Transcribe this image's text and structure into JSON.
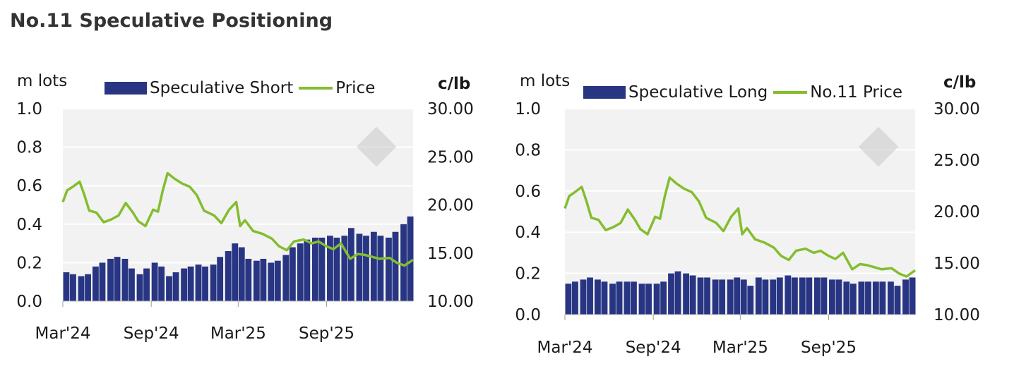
{
  "page": {
    "title": "No.11 Speculative Positioning"
  },
  "colors": {
    "bar": "#283583",
    "line": "#84bd2f",
    "plot_bg": "#f2f2f2",
    "grid": "#ffffff",
    "watermark": "#c8c8c8"
  },
  "chart_data": [
    {
      "type": "bar+line",
      "left_unit": "m lots",
      "right_unit": "c/lb",
      "x_range": [
        "2024-03-01",
        "2026-02-28"
      ],
      "x_ticks": [
        {
          "date": "2024-03-01",
          "label": "Mar'24"
        },
        {
          "date": "2024-09-01",
          "label": "Sep'24"
        },
        {
          "date": "2025-03-01",
          "label": "Mar'25"
        },
        {
          "date": "2025-09-01",
          "label": "Sep'25"
        }
      ],
      "y_left": {
        "min": 0,
        "max": 1.0,
        "ticks": [
          "0.0",
          "0.2",
          "0.4",
          "0.6",
          "0.8",
          "1.0"
        ]
      },
      "y_right": {
        "min": 10,
        "max": 30,
        "ticks": [
          "10.00",
          "15.00",
          "20.00",
          "25.00",
          "30.00"
        ]
      },
      "grid": true,
      "legend_position": "top",
      "series": [
        {
          "name": "Speculative Short",
          "kind": "bar",
          "axis": "left",
          "points": [
            [
              "2024-03-01",
              0.15
            ],
            [
              "2024-03-15",
              0.14
            ],
            [
              "2024-04-01",
              0.13
            ],
            [
              "2024-04-15",
              0.14
            ],
            [
              "2024-05-01",
              0.18
            ],
            [
              "2024-05-15",
              0.2
            ],
            [
              "2024-06-01",
              0.22
            ],
            [
              "2024-06-15",
              0.23
            ],
            [
              "2024-07-01",
              0.22
            ],
            [
              "2024-07-15",
              0.17
            ],
            [
              "2024-08-01",
              0.14
            ],
            [
              "2024-08-15",
              0.17
            ],
            [
              "2024-09-01",
              0.2
            ],
            [
              "2024-09-15",
              0.18
            ],
            [
              "2024-10-01",
              0.13
            ],
            [
              "2024-10-15",
              0.15
            ],
            [
              "2024-11-01",
              0.17
            ],
            [
              "2024-11-15",
              0.18
            ],
            [
              "2024-12-01",
              0.19
            ],
            [
              "2024-12-15",
              0.18
            ],
            [
              "2025-01-01",
              0.19
            ],
            [
              "2025-01-15",
              0.23
            ],
            [
              "2025-02-01",
              0.26
            ],
            [
              "2025-02-15",
              0.3
            ],
            [
              "2025-03-01",
              0.28
            ],
            [
              "2025-03-15",
              0.22
            ],
            [
              "2025-04-01",
              0.21
            ],
            [
              "2025-04-15",
              0.22
            ],
            [
              "2025-05-01",
              0.2
            ],
            [
              "2025-05-15",
              0.21
            ],
            [
              "2025-06-01",
              0.24
            ],
            [
              "2025-06-15",
              0.28
            ],
            [
              "2025-07-01",
              0.3
            ],
            [
              "2025-07-15",
              0.32
            ],
            [
              "2025-08-01",
              0.33
            ],
            [
              "2025-08-15",
              0.33
            ],
            [
              "2025-09-01",
              0.34
            ],
            [
              "2025-09-15",
              0.33
            ],
            [
              "2025-10-01",
              0.34
            ],
            [
              "2025-10-15",
              0.38
            ],
            [
              "2025-11-01",
              0.35
            ],
            [
              "2025-11-15",
              0.34
            ],
            [
              "2025-12-01",
              0.36
            ],
            [
              "2025-12-15",
              0.34
            ],
            [
              "2026-01-01",
              0.33
            ],
            [
              "2026-01-15",
              0.36
            ],
            [
              "2026-02-01",
              0.4
            ],
            [
              "2026-02-15",
              0.44
            ]
          ]
        },
        {
          "name": "Price",
          "kind": "line",
          "axis": "right",
          "points": [
            [
              "2024-03-01",
              20.3
            ],
            [
              "2024-03-10",
              21.5
            ],
            [
              "2024-03-25",
              22.0
            ],
            [
              "2024-04-05",
              22.4
            ],
            [
              "2024-04-15",
              21.0
            ],
            [
              "2024-04-25",
              19.4
            ],
            [
              "2024-05-10",
              19.2
            ],
            [
              "2024-05-25",
              18.2
            ],
            [
              "2024-06-10",
              18.5
            ],
            [
              "2024-06-25",
              18.9
            ],
            [
              "2024-07-10",
              20.2
            ],
            [
              "2024-07-25",
              19.2
            ],
            [
              "2024-08-05",
              18.3
            ],
            [
              "2024-08-20",
              17.8
            ],
            [
              "2024-09-05",
              19.5
            ],
            [
              "2024-09-15",
              19.3
            ],
            [
              "2024-09-25",
              21.5
            ],
            [
              "2024-10-05",
              23.3
            ],
            [
              "2024-10-20",
              22.7
            ],
            [
              "2024-11-05",
              22.2
            ],
            [
              "2024-11-20",
              21.9
            ],
            [
              "2024-12-05",
              21.0
            ],
            [
              "2024-12-20",
              19.4
            ],
            [
              "2025-01-10",
              18.9
            ],
            [
              "2025-01-25",
              18.1
            ],
            [
              "2025-02-10",
              19.5
            ],
            [
              "2025-02-25",
              20.3
            ],
            [
              "2025-03-05",
              17.8
            ],
            [
              "2025-03-15",
              18.4
            ],
            [
              "2025-04-01",
              17.3
            ],
            [
              "2025-04-20",
              17.0
            ],
            [
              "2025-05-10",
              16.5
            ],
            [
              "2025-05-25",
              15.7
            ],
            [
              "2025-06-10",
              15.3
            ],
            [
              "2025-06-25",
              16.2
            ],
            [
              "2025-07-15",
              16.4
            ],
            [
              "2025-08-01",
              16.0
            ],
            [
              "2025-08-15",
              16.2
            ],
            [
              "2025-09-01",
              15.7
            ],
            [
              "2025-09-15",
              15.4
            ],
            [
              "2025-10-01",
              16.0
            ],
            [
              "2025-10-20",
              14.4
            ],
            [
              "2025-11-05",
              14.9
            ],
            [
              "2025-11-20",
              14.8
            ],
            [
              "2025-12-05",
              14.6
            ],
            [
              "2025-12-20",
              14.4
            ],
            [
              "2026-01-10",
              14.5
            ],
            [
              "2026-01-25",
              14.0
            ],
            [
              "2026-02-10",
              13.7
            ],
            [
              "2026-02-28",
              14.3
            ]
          ]
        }
      ]
    },
    {
      "type": "bar+line",
      "left_unit": "m lots",
      "right_unit": "c/lb",
      "x_range": [
        "2024-03-01",
        "2026-02-28"
      ],
      "x_ticks": [
        {
          "date": "2024-03-01",
          "label": "Mar'24"
        },
        {
          "date": "2024-09-01",
          "label": "Sep'24"
        },
        {
          "date": "2025-03-01",
          "label": "Mar'25"
        },
        {
          "date": "2025-09-01",
          "label": "Sep'25"
        }
      ],
      "y_left": {
        "min": 0,
        "max": 1.0,
        "ticks": [
          "0.0",
          "0.2",
          "0.4",
          "0.6",
          "0.8",
          "1.0"
        ]
      },
      "y_right": {
        "min": 10,
        "max": 30,
        "ticks": [
          "10.00",
          "15.00",
          "20.00",
          "25.00",
          "30.00"
        ]
      },
      "grid": true,
      "legend_position": "top",
      "series": [
        {
          "name": "Speculative Long",
          "kind": "bar",
          "axis": "left",
          "points": [
            [
              "2024-03-01",
              0.15
            ],
            [
              "2024-03-15",
              0.16
            ],
            [
              "2024-04-01",
              0.17
            ],
            [
              "2024-04-15",
              0.18
            ],
            [
              "2024-05-01",
              0.17
            ],
            [
              "2024-05-15",
              0.16
            ],
            [
              "2024-06-01",
              0.15
            ],
            [
              "2024-06-15",
              0.16
            ],
            [
              "2024-07-01",
              0.16
            ],
            [
              "2024-07-15",
              0.16
            ],
            [
              "2024-08-01",
              0.15
            ],
            [
              "2024-08-15",
              0.15
            ],
            [
              "2024-09-01",
              0.15
            ],
            [
              "2024-09-15",
              0.16
            ],
            [
              "2024-10-01",
              0.2
            ],
            [
              "2024-10-15",
              0.21
            ],
            [
              "2024-11-01",
              0.2
            ],
            [
              "2024-11-15",
              0.19
            ],
            [
              "2024-12-01",
              0.18
            ],
            [
              "2024-12-15",
              0.18
            ],
            [
              "2025-01-01",
              0.17
            ],
            [
              "2025-01-15",
              0.17
            ],
            [
              "2025-02-01",
              0.17
            ],
            [
              "2025-02-15",
              0.18
            ],
            [
              "2025-03-01",
              0.17
            ],
            [
              "2025-03-15",
              0.14
            ],
            [
              "2025-04-01",
              0.18
            ],
            [
              "2025-04-15",
              0.17
            ],
            [
              "2025-05-01",
              0.17
            ],
            [
              "2025-05-15",
              0.18
            ],
            [
              "2025-06-01",
              0.19
            ],
            [
              "2025-06-15",
              0.18
            ],
            [
              "2025-07-01",
              0.18
            ],
            [
              "2025-07-15",
              0.18
            ],
            [
              "2025-08-01",
              0.18
            ],
            [
              "2025-08-15",
              0.18
            ],
            [
              "2025-09-01",
              0.17
            ],
            [
              "2025-09-15",
              0.17
            ],
            [
              "2025-10-01",
              0.16
            ],
            [
              "2025-10-15",
              0.15
            ],
            [
              "2025-11-01",
              0.16
            ],
            [
              "2025-11-15",
              0.16
            ],
            [
              "2025-12-01",
              0.16
            ],
            [
              "2025-12-15",
              0.16
            ],
            [
              "2026-01-01",
              0.16
            ],
            [
              "2026-01-15",
              0.14
            ],
            [
              "2026-02-01",
              0.17
            ],
            [
              "2026-02-15",
              0.18
            ]
          ]
        },
        {
          "name": "No.11 Price",
          "kind": "line",
          "axis": "right",
          "points": [
            [
              "2024-03-01",
              20.3
            ],
            [
              "2024-03-10",
              21.5
            ],
            [
              "2024-03-25",
              22.0
            ],
            [
              "2024-04-05",
              22.4
            ],
            [
              "2024-04-15",
              21.0
            ],
            [
              "2024-04-25",
              19.4
            ],
            [
              "2024-05-10",
              19.2
            ],
            [
              "2024-05-25",
              18.2
            ],
            [
              "2024-06-10",
              18.5
            ],
            [
              "2024-06-25",
              18.9
            ],
            [
              "2024-07-10",
              20.2
            ],
            [
              "2024-07-25",
              19.2
            ],
            [
              "2024-08-05",
              18.3
            ],
            [
              "2024-08-20",
              17.8
            ],
            [
              "2024-09-05",
              19.5
            ],
            [
              "2024-09-15",
              19.3
            ],
            [
              "2024-09-25",
              21.5
            ],
            [
              "2024-10-05",
              23.3
            ],
            [
              "2024-10-20",
              22.7
            ],
            [
              "2024-11-05",
              22.2
            ],
            [
              "2024-11-20",
              21.9
            ],
            [
              "2024-12-05",
              21.0
            ],
            [
              "2024-12-20",
              19.4
            ],
            [
              "2025-01-10",
              18.9
            ],
            [
              "2025-01-25",
              18.1
            ],
            [
              "2025-02-10",
              19.5
            ],
            [
              "2025-02-25",
              20.3
            ],
            [
              "2025-03-05",
              17.8
            ],
            [
              "2025-03-15",
              18.4
            ],
            [
              "2025-04-01",
              17.3
            ],
            [
              "2025-04-20",
              17.0
            ],
            [
              "2025-05-10",
              16.5
            ],
            [
              "2025-05-25",
              15.7
            ],
            [
              "2025-06-10",
              15.3
            ],
            [
              "2025-06-25",
              16.2
            ],
            [
              "2025-07-15",
              16.4
            ],
            [
              "2025-08-01",
              16.0
            ],
            [
              "2025-08-15",
              16.2
            ],
            [
              "2025-09-01",
              15.7
            ],
            [
              "2025-09-15",
              15.4
            ],
            [
              "2025-10-01",
              16.0
            ],
            [
              "2025-10-20",
              14.4
            ],
            [
              "2025-11-05",
              14.9
            ],
            [
              "2025-11-20",
              14.8
            ],
            [
              "2025-12-05",
              14.6
            ],
            [
              "2025-12-20",
              14.4
            ],
            [
              "2026-01-10",
              14.5
            ],
            [
              "2026-01-25",
              14.0
            ],
            [
              "2026-02-10",
              13.7
            ],
            [
              "2026-02-28",
              14.3
            ]
          ]
        }
      ]
    }
  ]
}
